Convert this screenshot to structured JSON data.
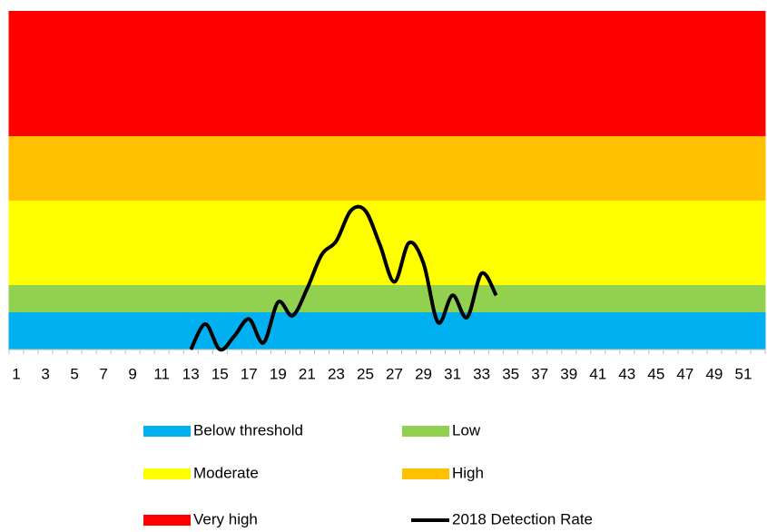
{
  "chart_data": {
    "type": "area",
    "categories": [
      1,
      null,
      3,
      null,
      5,
      null,
      7,
      null,
      9,
      null,
      11,
      null,
      13,
      null,
      15,
      null,
      17,
      null,
      19,
      null,
      21,
      null,
      23,
      null,
      25,
      null,
      27,
      null,
      29,
      null,
      31,
      null,
      33,
      null,
      35,
      null,
      37,
      null,
      39,
      null,
      41,
      null,
      43,
      null,
      45,
      null,
      47,
      null,
      49,
      null,
      51,
      null
    ],
    "ylim": [
      0,
      100
    ],
    "series": [
      {
        "name": "Below threshold",
        "color": "#00b0f0",
        "values": [
          11,
          11,
          11,
          11,
          11,
          11,
          11,
          11,
          11,
          11,
          11,
          11,
          11,
          11,
          11,
          11,
          11,
          11,
          11,
          11,
          11,
          11,
          11,
          11,
          11,
          11,
          11,
          11,
          11,
          11,
          11,
          11,
          11,
          11,
          11,
          11,
          11,
          11,
          11,
          11,
          11,
          11,
          11,
          11,
          11,
          11,
          11,
          11,
          11,
          11,
          11,
          11
        ]
      },
      {
        "name": "Low",
        "color": "#92d050",
        "values": [
          8,
          8,
          8,
          8,
          8,
          8,
          8,
          8,
          8,
          8,
          8,
          8,
          8,
          8,
          8,
          8,
          8,
          8,
          8,
          8,
          8,
          8,
          8,
          8,
          8,
          8,
          8,
          8,
          8,
          8,
          8,
          8,
          8,
          8,
          8,
          8,
          8,
          8,
          8,
          8,
          8,
          8,
          8,
          8,
          8,
          8,
          8,
          8,
          8,
          8,
          8,
          8
        ]
      },
      {
        "name": "Moderate",
        "color": "#ffff00",
        "values": [
          25,
          25,
          25,
          25,
          25,
          25,
          25,
          25,
          25,
          25,
          25,
          25,
          25,
          25,
          25,
          25,
          25,
          25,
          25,
          25,
          25,
          25,
          25,
          25,
          25,
          25,
          25,
          25,
          25,
          25,
          25,
          25,
          25,
          25,
          25,
          25,
          25,
          25,
          25,
          25,
          25,
          25,
          25,
          25,
          25,
          25,
          25,
          25,
          25,
          25,
          25,
          25
        ]
      },
      {
        "name": "High",
        "color": "#ffc000",
        "values": [
          19,
          19,
          19,
          19,
          19,
          19,
          19,
          19,
          19,
          19,
          19,
          19,
          19,
          19,
          19,
          19,
          19,
          19,
          19,
          19,
          19,
          19,
          19,
          19,
          19,
          19,
          19,
          19,
          19,
          19,
          19,
          19,
          19,
          19,
          19,
          19,
          19,
          19,
          19,
          19,
          19,
          19,
          19,
          19,
          19,
          19,
          19,
          19,
          19,
          19,
          19,
          19
        ]
      },
      {
        "name": "Very high",
        "color": "#ff0000",
        "values": [
          37,
          37,
          37,
          37,
          37,
          37,
          37,
          37,
          37,
          37,
          37,
          37,
          37,
          37,
          37,
          37,
          37,
          37,
          37,
          37,
          37,
          37,
          37,
          37,
          37,
          37,
          37,
          37,
          37,
          37,
          37,
          37,
          37,
          37,
          37,
          37,
          37,
          37,
          37,
          37,
          37,
          37,
          37,
          37,
          37,
          37,
          37,
          37,
          37,
          37,
          37,
          37
        ]
      },
      {
        "name": "2018 Detection Rate",
        "color": "#000000",
        "type": "line",
        "values": [
          null,
          null,
          null,
          null,
          null,
          null,
          null,
          null,
          null,
          null,
          null,
          null,
          0,
          7.5,
          0,
          4,
          9,
          2,
          14,
          10,
          18,
          28,
          32,
          41,
          41,
          31,
          20,
          31.5,
          25.5,
          8,
          16,
          9.5,
          22.5,
          16,
          null,
          null,
          null,
          null,
          null,
          null,
          null,
          null,
          null,
          null,
          null,
          null,
          null,
          null,
          null,
          null,
          null,
          null
        ]
      }
    ]
  }
}
